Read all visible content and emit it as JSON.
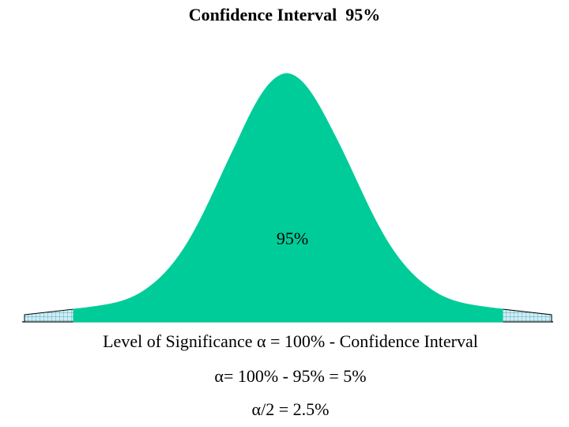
{
  "title": "Confidence Interval  95%",
  "center_label": "95%",
  "line1": {
    "prefix": "Level of Significance ",
    "symbol": "α",
    "suffix": " = 100% - Confidence Interval"
  },
  "line2": {
    "symbol": "α",
    "suffix": "= 100% - 95% = 5%"
  },
  "line3": {
    "symbol": "α",
    "suffix": "/2 = 2.5%"
  },
  "colors": {
    "curve_fill": "#00CC99",
    "tail_fill": "#C8F0FA",
    "tail_grid": "#5A7F8C",
    "baseline": "#000000"
  }
}
